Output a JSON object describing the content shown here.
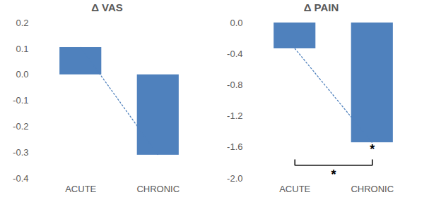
{
  "chart_data": [
    {
      "type": "bar",
      "title": "Δ VAS",
      "categories": [
        "ACUTE",
        "CHRONIC"
      ],
      "values": [
        0.105,
        -0.31
      ],
      "color": "#4f81bd",
      "line_style": "dotted",
      "ylim": [
        -0.4,
        0.2
      ],
      "yticks": [
        -0.4,
        -0.3,
        -0.2,
        -0.1,
        {
          "value": 0,
          "label": "0.0"
        },
        0.1,
        0.2
      ]
    },
    {
      "type": "bar",
      "title": "Δ PAIN",
      "categories": [
        "ACUTE",
        "CHRONIC"
      ],
      "values": [
        -0.33,
        -1.54
      ],
      "color": "#4f81bd",
      "line_style": "dotted",
      "ylim": [
        -2.0,
        0.0
      ],
      "yticks": [
        {
          "value": -2,
          "label": "-2.0"
        },
        -1.6,
        -1.2,
        -0.8,
        -0.4,
        {
          "value": 0,
          "label": "0.0"
        }
      ],
      "annotations": [
        {
          "text": "*",
          "category": "CHRONIC"
        },
        {
          "text": "*",
          "between": [
            "ACUTE",
            "CHRONIC"
          ]
        }
      ]
    }
  ]
}
